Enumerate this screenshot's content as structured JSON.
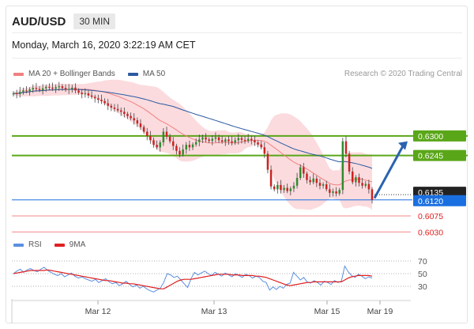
{
  "header": {
    "symbol": "AUD/USD",
    "timeframe": "30 MIN",
    "datetime": "Monday, March 16, 2020 3:22:19 AM CET"
  },
  "legend": {
    "ma20": "MA 20 + Bollinger Bands",
    "ma50": "MA 50",
    "credit": "Research © 2020 Trading Central"
  },
  "rsi_legend": {
    "rsi": "RSI",
    "ma": "9MA"
  },
  "colors": {
    "ma20": "#f08080",
    "ma50": "#2c5aa0",
    "bollinger": "#f9cfd3",
    "candle_up": "#2e8b2e",
    "candle_down": "#cc2222",
    "resistance": "#5aa619",
    "current": "#1a6fe0",
    "support": "#f08888",
    "arrow": "#2a62b0",
    "rsi": "#5b8fe0",
    "rsi_ma": "#e02020"
  },
  "chart_data": [
    {
      "type": "candlestick",
      "title": "AUD/USD",
      "x": {
        "ticks": [
          "Mar 12",
          "Mar 13",
          "Mar 15",
          "Mar 19"
        ]
      },
      "ylim": [
        0.6015,
        0.646
      ],
      "levels": [
        {
          "value": 0.63,
          "label": "0.6300",
          "kind": "resistance"
        },
        {
          "value": 0.6245,
          "label": "0.6245",
          "kind": "resistance"
        },
        {
          "value": 0.6135,
          "label": "0.6135",
          "kind": "last"
        },
        {
          "value": 0.612,
          "label": "0.6120",
          "kind": "current"
        },
        {
          "value": 0.6075,
          "label": "0.6075",
          "kind": "support"
        },
        {
          "value": 0.603,
          "label": "0.6030",
          "kind": "support"
        }
      ],
      "forecast_arrow": {
        "from": 0.6125,
        "to": 0.6285
      },
      "closes": [
        0.642,
        0.6418,
        0.6424,
        0.6428,
        0.6426,
        0.6431,
        0.6435,
        0.6432,
        0.6429,
        0.6434,
        0.6438,
        0.6436,
        0.6433,
        0.6437,
        0.644,
        0.6435,
        0.643,
        0.6432,
        0.6436,
        0.6428,
        0.6422,
        0.6418,
        0.642,
        0.6414,
        0.641,
        0.6406,
        0.6402,
        0.6398,
        0.6392,
        0.6385,
        0.638,
        0.6376,
        0.6372,
        0.6368,
        0.6362,
        0.6356,
        0.635,
        0.6344,
        0.6335,
        0.6325,
        0.6312,
        0.63,
        0.6288,
        0.6275,
        0.6268,
        0.6282,
        0.6312,
        0.6298,
        0.6285,
        0.6272,
        0.6258,
        0.6248,
        0.6262,
        0.6275,
        0.6268,
        0.6276,
        0.6283,
        0.629,
        0.6296,
        0.629,
        0.6286,
        0.6292,
        0.6296,
        0.6288,
        0.6284,
        0.629,
        0.6285,
        0.6281,
        0.6288,
        0.6294,
        0.6289,
        0.6286,
        0.6292,
        0.6288,
        0.6282,
        0.6276,
        0.6268,
        0.625,
        0.6205,
        0.6158,
        0.615,
        0.6162,
        0.6148,
        0.6154,
        0.6145,
        0.6152,
        0.616,
        0.6182,
        0.6212,
        0.6194,
        0.6176,
        0.617,
        0.618,
        0.6168,
        0.616,
        0.6164,
        0.615,
        0.614,
        0.6144,
        0.6138,
        0.6148,
        0.6285,
        0.625,
        0.62,
        0.617,
        0.6184,
        0.6168,
        0.616,
        0.6165,
        0.615,
        0.612
      ],
      "rsi": {
        "ylim": [
          15,
          80
        ],
        "ticks": [
          70,
          50,
          30
        ],
        "rsi": [
          50,
          54,
          57,
          52,
          56,
          58,
          55,
          53,
          57,
          60,
          55,
          52,
          49,
          47,
          50,
          45,
          48,
          51,
          46,
          43,
          45,
          42,
          40,
          38,
          41,
          36,
          39,
          42,
          37,
          34,
          36,
          31,
          34,
          38,
          33,
          29,
          32,
          27,
          30,
          26,
          23,
          21,
          24,
          27,
          36,
          50,
          48,
          44,
          46,
          40,
          34,
          28,
          42,
          52,
          48,
          51,
          54,
          50,
          47,
          52,
          49,
          46,
          51,
          48,
          45,
          50,
          47,
          44,
          49,
          47,
          43,
          46,
          44,
          38,
          36,
          24,
          29,
          25,
          30,
          27,
          33,
          35,
          52,
          46,
          40,
          44,
          37,
          35,
          39,
          36,
          32,
          38,
          36,
          33,
          39,
          36,
          38,
          62,
          53,
          47,
          44,
          49,
          46,
          42,
          45,
          43
        ],
        "ma": [
          50,
          51,
          52,
          53,
          54,
          55,
          55,
          55,
          55,
          55,
          56,
          55,
          54,
          53,
          52,
          51,
          50,
          49,
          48,
          47,
          46,
          45,
          44,
          43,
          42,
          41,
          40,
          39,
          39,
          38,
          37,
          36,
          35,
          35,
          34,
          34,
          33,
          32,
          31,
          30,
          29,
          28,
          27,
          26,
          26,
          29,
          32,
          35,
          38,
          40,
          41,
          41,
          41,
          42,
          43,
          44,
          45,
          46,
          47,
          48,
          49,
          49,
          49,
          49,
          48,
          48,
          48,
          47,
          47,
          47,
          47,
          46,
          46,
          45,
          44,
          42,
          40,
          38,
          36,
          34,
          32,
          31,
          32,
          33,
          34,
          35,
          36,
          36,
          37,
          37,
          37,
          37,
          37,
          37,
          37,
          37,
          37,
          40,
          43,
          45,
          46,
          47,
          47,
          47,
          47,
          46
        ]
      }
    }
  ]
}
